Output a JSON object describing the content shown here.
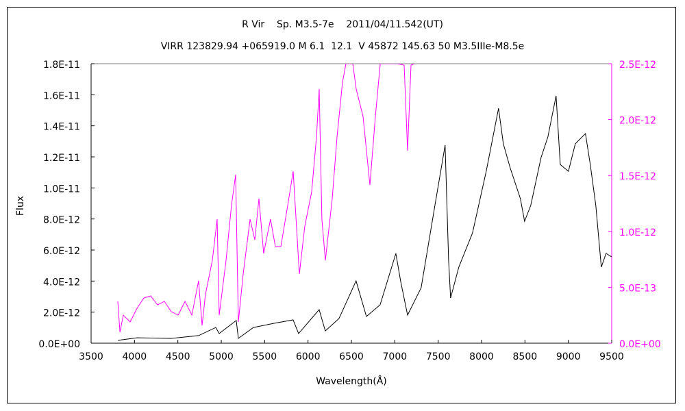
{
  "chart_data": {
    "type": "line",
    "title": "R Vir    Sp. M3.5-7e    2011/04/11.542(UT)",
    "subtitle": "VIRR 123829.94 +065919.0 M 6.1  12.1  V 45872 145.63 50 M3.5IIIe-M8.5e",
    "xlabel": "Wavelength(Å)",
    "ylabel": "Flux",
    "xlim": [
      3500,
      9500
    ],
    "ylim": [
      0,
      1.8e-11
    ],
    "y2lim": [
      0,
      2.5e-12
    ],
    "grid": false,
    "x_ticks": [
      "3500",
      "4000",
      "4500",
      "5000",
      "5500",
      "6000",
      "6500",
      "7000",
      "7500",
      "8000",
      "8500",
      "9000",
      "9500"
    ],
    "y_ticks": [
      "0.0E+00",
      "2.0E-12",
      "4.0E-12",
      "6.0E-12",
      "8.0E-12",
      "1.0E-11",
      "1.2E-11",
      "1.4E-11",
      "1.6E-11",
      "1.8E-11"
    ],
    "y2_ticks": [
      "0.0E+00",
      "5.0E-13",
      "1.0E-12",
      "1.5E-12",
      "2.0E-12",
      "2.5E-12"
    ],
    "colors": {
      "primary": "#000000",
      "secondary": "#ff00ff"
    },
    "series": [
      {
        "axis": "left",
        "color": "#000000",
        "x": [
          3808,
          4029,
          4423,
          4739,
          4937,
          4976,
          5173,
          5197,
          5370,
          5607,
          5828,
          5891,
          6128,
          6199,
          6357,
          6554,
          6673,
          6831,
          7012,
          7067,
          7147,
          7304,
          7462,
          7580,
          7620,
          7643,
          7738,
          7896,
          8054,
          8196,
          8251,
          8330,
          8448,
          8496,
          8567,
          8686,
          8764,
          8859,
          8907,
          9001,
          9080,
          9198,
          9253,
          9317,
          9380,
          9435,
          9500
        ],
        "y": [
          1.8e-13,
          3.5e-13,
          3.1e-13,
          4.9e-13,
          1.01e-12,
          6.2e-13,
          1.46e-12,
          3.1e-13,
          1.01e-12,
          1.28e-12,
          1.5e-12,
          6.2e-13,
          2.16e-12,
          7.9e-13,
          1.59e-12,
          4.01e-12,
          1.72e-12,
          2.47e-12,
          5.78e-12,
          4.01e-12,
          1.81e-12,
          3.57e-12,
          8.87e-12,
          1.275e-11,
          5.34e-12,
          2.91e-12,
          4.9e-12,
          7.1e-12,
          1.107e-11,
          1.513e-11,
          1.284e-11,
          1.129e-11,
          9.31e-12,
          7.85e-12,
          8.87e-12,
          1.196e-11,
          1.328e-11,
          1.593e-11,
          1.151e-11,
          1.107e-11,
          1.284e-11,
          1.35e-11,
          1.151e-11,
          8.87e-12,
          4.9e-12,
          5.78e-12,
          5.56e-12
        ]
      },
      {
        "axis": "right",
        "color": "#ff00ff",
        "x": [
          3808,
          3832,
          3871,
          3950,
          4029,
          4108,
          4187,
          4266,
          4345,
          4424,
          4503,
          4582,
          4661,
          4739,
          4779,
          4818,
          4897,
          4953,
          4976,
          5055,
          5118,
          5166,
          5197,
          5253,
          5332,
          5387,
          5434,
          5489,
          5568,
          5624,
          5687,
          5766,
          5829,
          5900,
          5963,
          6042,
          6097,
          6129,
          6160,
          6200,
          6279,
          6334,
          6397,
          6437,
          6516,
          6555,
          6634,
          6713,
          6776,
          6832,
          6950,
          7029,
          7108,
          7147,
          7187,
          7226
        ],
        "y": [
          3.74e-13,
          9.8e-14,
          2.51e-13,
          1.9e-13,
          3.12e-13,
          4.04e-13,
          4.23e-13,
          3.43e-13,
          3.74e-13,
          2.82e-13,
          2.51e-13,
          3.74e-13,
          2.51e-13,
          5.58e-13,
          1.59e-13,
          4.35e-13,
          7.41e-13,
          1.109e-12,
          2.51e-13,
          7.41e-13,
          1.232e-12,
          1.507e-12,
          1.9e-13,
          6.19e-13,
          1.109e-12,
          9.25e-13,
          1.293e-12,
          8.03e-13,
          1.109e-12,
          8.64e-13,
          8.64e-13,
          1.232e-12,
          1.538e-12,
          6.19e-13,
          1.048e-12,
          1.354e-12,
          1.844e-12,
          2.273e-12,
          1.109e-12,
          7.41e-13,
          1.293e-12,
          1.844e-12,
          2.334e-12,
          2.5e-12,
          2.5e-12,
          2.273e-12,
          2.028e-12,
          1.415e-12,
          2.028e-12,
          2.5e-12,
          2.5e-12,
          2.5e-12,
          2.487e-12,
          1.722e-12,
          2.487e-12,
          2.5e-12
        ]
      }
    ]
  }
}
